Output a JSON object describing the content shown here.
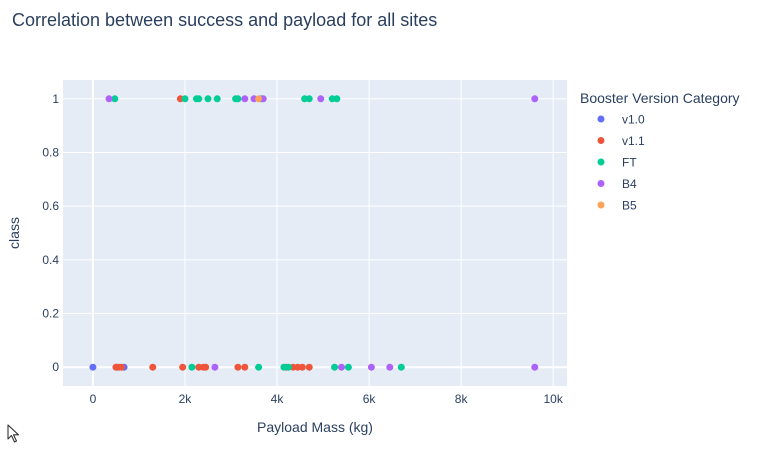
{
  "chart_data": {
    "type": "scatter",
    "title": "Correlation between success and payload for all sites",
    "xlabel": "Payload Mass (kg)",
    "ylabel": "class",
    "xlim": [
      -650,
      10300
    ],
    "ylim": [
      -0.07,
      1.07
    ],
    "xticks": [
      0,
      2000,
      4000,
      6000,
      8000,
      10000
    ],
    "xtick_labels": [
      "0",
      "2k",
      "4k",
      "6k",
      "8k",
      "10k"
    ],
    "yticks": [
      0,
      0.2,
      0.4,
      0.6,
      0.8,
      1
    ],
    "ytick_labels": [
      "0",
      "0.2",
      "0.4",
      "0.6",
      "0.8",
      "1"
    ],
    "legend_title": "Booster Version Category",
    "legend_position": "right",
    "series": [
      {
        "name": "v1.0",
        "color": "#636efa",
        "points": [
          [
            0,
            0
          ],
          [
            525,
            0
          ],
          [
            677,
            0
          ]
        ]
      },
      {
        "name": "v1.1",
        "color": "#ef553b",
        "points": [
          [
            500,
            0
          ],
          [
            570,
            0
          ],
          [
            620,
            0
          ],
          [
            1300,
            0
          ],
          [
            1900,
            1
          ],
          [
            1950,
            0
          ],
          [
            2300,
            0
          ],
          [
            2400,
            0
          ],
          [
            2450,
            0
          ],
          [
            3150,
            0
          ],
          [
            3300,
            0
          ],
          [
            4200,
            0
          ],
          [
            4350,
            0
          ],
          [
            4450,
            0
          ],
          [
            4550,
            0
          ],
          [
            4700,
            0
          ]
        ]
      },
      {
        "name": "FT",
        "color": "#00cc96",
        "points": [
          [
            475,
            1
          ],
          [
            2000,
            1
          ],
          [
            2150,
            0
          ],
          [
            2250,
            1
          ],
          [
            2300,
            1
          ],
          [
            2500,
            1
          ],
          [
            2700,
            1
          ],
          [
            3100,
            1
          ],
          [
            3150,
            1
          ],
          [
            3600,
            0
          ],
          [
            3650,
            1
          ],
          [
            4150,
            0
          ],
          [
            4250,
            0
          ],
          [
            4600,
            1
          ],
          [
            4700,
            1
          ],
          [
            5200,
            1
          ],
          [
            5250,
            0
          ],
          [
            5300,
            1
          ],
          [
            5550,
            0
          ],
          [
            6700,
            0
          ]
        ]
      },
      {
        "name": "B4",
        "color": "#ab63fa",
        "points": [
          [
            350,
            1
          ],
          [
            2650,
            0
          ],
          [
            3300,
            1
          ],
          [
            3500,
            1
          ],
          [
            3700,
            1
          ],
          [
            4950,
            1
          ],
          [
            5400,
            0
          ],
          [
            6050,
            0
          ],
          [
            6450,
            0
          ],
          [
            9600,
            1
          ],
          [
            9600,
            0
          ]
        ]
      },
      {
        "name": "B5",
        "color": "#ffa15a",
        "points": [
          [
            3600,
            1
          ]
        ]
      }
    ]
  }
}
